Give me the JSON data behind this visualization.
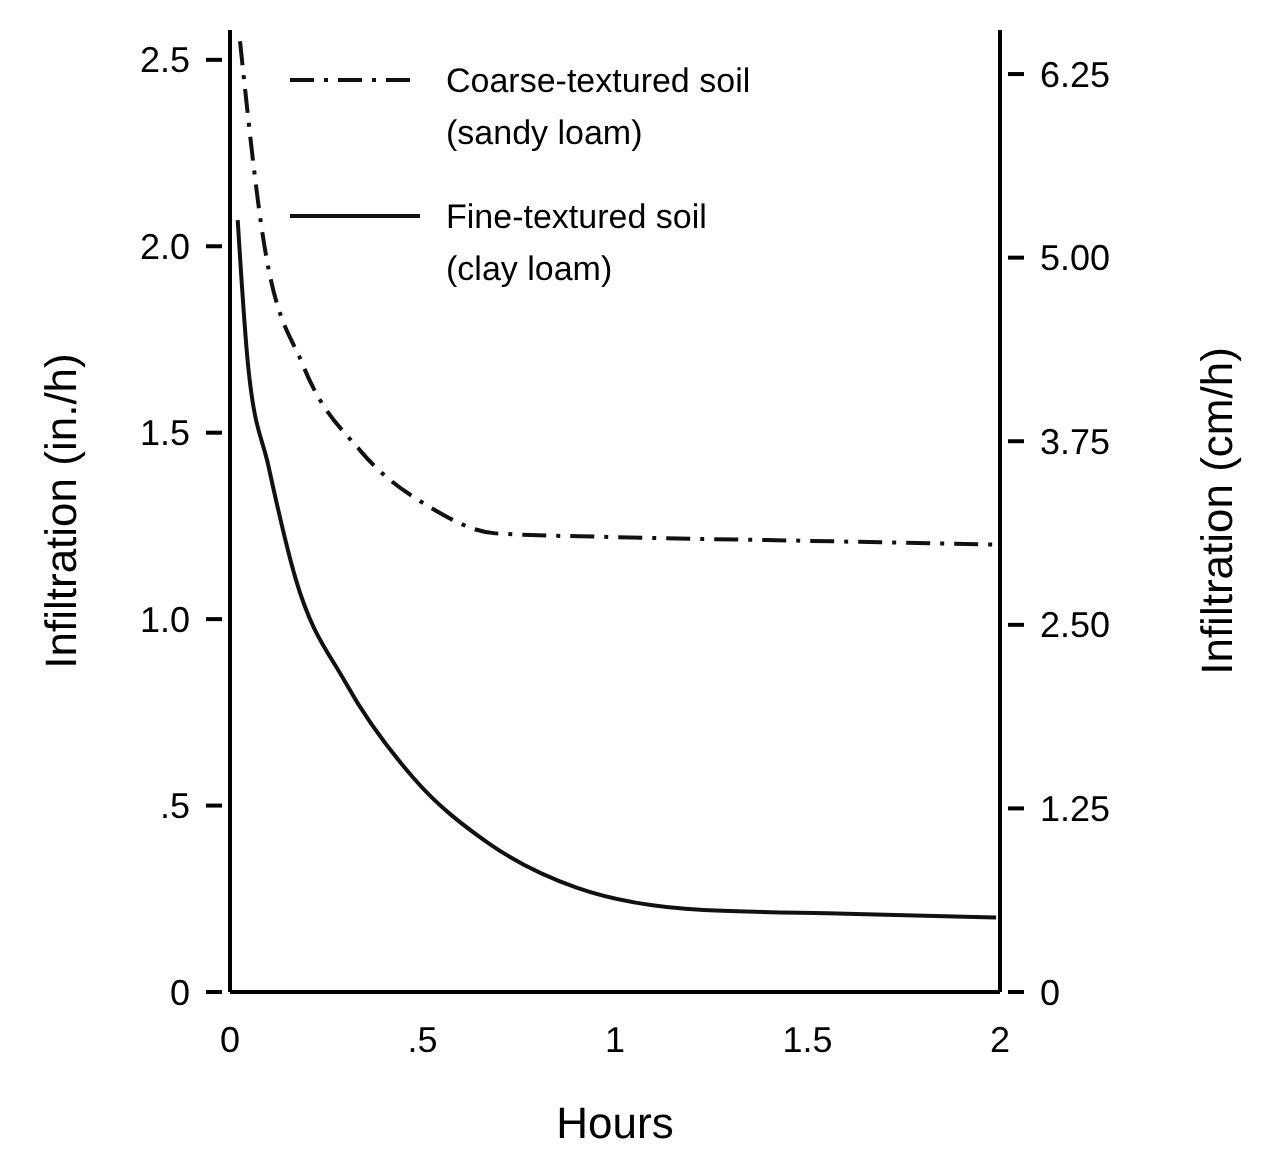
{
  "chart_data": {
    "type": "line",
    "xlabel": "Hours",
    "ylabel": "Infiltration (in./h)",
    "y2label": "Infiltration (cm/h)",
    "xlim": [
      0,
      2
    ],
    "xticks": [
      0,
      {
        "value": 0.5,
        "label": ".5"
      },
      1,
      1.5,
      2
    ],
    "ylim": [
      0,
      2.58
    ],
    "yticks": [
      0,
      {
        "value": 0.5,
        "label": ".5"
      },
      {
        "value": 1,
        "label": "1.0"
      },
      1.5,
      {
        "value": 2,
        "label": "2.0"
      },
      2.5
    ],
    "y2lim": [
      0,
      6.55
    ],
    "y2ticks": [
      0,
      1.25,
      {
        "value": 2.5,
        "label": "2.50"
      },
      3.75,
      {
        "value": 5,
        "label": "5.00"
      },
      6.25
    ],
    "legend": "top left",
    "grid": false,
    "series": [
      {
        "name": "Coarse-textured soil\n(sandy loam)",
        "color": "#111111",
        "line_style": "dashdot",
        "x": [
          0.026,
          0.088,
          0.19,
          0.34,
          0.52,
          0.69,
          1.0,
          1.5,
          1.99
        ],
        "values": [
          2.55,
          2.01,
          1.68,
          1.45,
          1.3,
          1.23,
          1.22,
          1.21,
          1.2
        ]
      },
      {
        "name": "Fine-textured soil\n(clay loam)",
        "color": "#111111",
        "line_style": "solid",
        "x": [
          0.02,
          0.047,
          0.1,
          0.17,
          0.3,
          0.48,
          0.67,
          0.9,
          1.23,
          1.6,
          1.99
        ],
        "values": [
          2.07,
          1.68,
          1.41,
          1.11,
          0.83,
          0.57,
          0.4,
          0.28,
          0.22,
          0.21,
          0.2
        ]
      }
    ]
  }
}
